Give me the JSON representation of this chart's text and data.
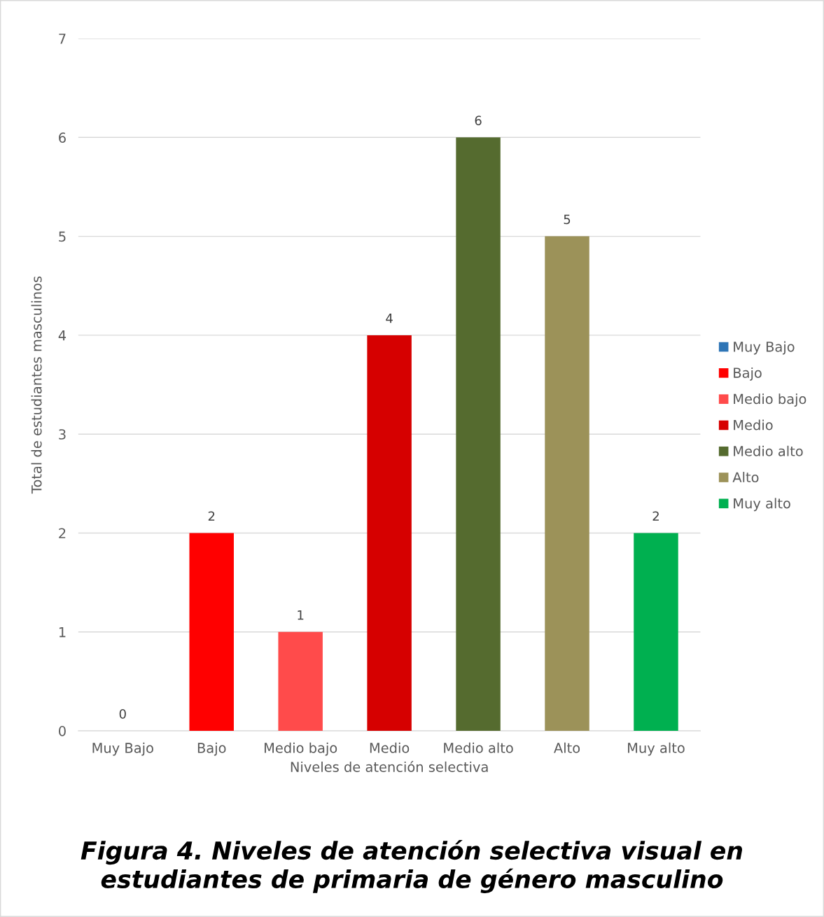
{
  "chart_data": {
    "type": "bar",
    "title": "Figura 4. Niveles de atención selectiva visual en estudiantes de primaria de género masculino",
    "xlabel": "Niveles de atención selectiva",
    "ylabel": "Total de estudiantes masculinos",
    "categories": [
      "Muy Bajo",
      "Bajo",
      "Medio bajo",
      "Medio",
      "Medio alto",
      "Alto",
      "Muy alto"
    ],
    "series": [
      {
        "name": "Muy Bajo",
        "color": "#2e75b6",
        "values": [
          0,
          null,
          null,
          null,
          null,
          null,
          null
        ]
      },
      {
        "name": "Bajo",
        "color": "#ff0000",
        "values": [
          null,
          2,
          null,
          null,
          null,
          null,
          null
        ]
      },
      {
        "name": "Medio bajo",
        "color": "#ff4b4b",
        "values": [
          null,
          null,
          1,
          null,
          null,
          null,
          null
        ]
      },
      {
        "name": "Medio",
        "color": "#d60000",
        "values": [
          null,
          null,
          null,
          4,
          null,
          null,
          null
        ]
      },
      {
        "name": "Medio alto",
        "color": "#556b2f",
        "values": [
          null,
          null,
          null,
          null,
          6,
          null,
          null
        ]
      },
      {
        "name": "Alto",
        "color": "#9c9259",
        "values": [
          null,
          null,
          null,
          null,
          null,
          5,
          null
        ]
      },
      {
        "name": "Muy alto",
        "color": "#00b050",
        "values": [
          null,
          null,
          null,
          null,
          null,
          null,
          2
        ]
      }
    ],
    "ylim": [
      0,
      7
    ],
    "yticks": [
      0,
      1,
      2,
      3,
      4,
      5,
      6,
      7
    ],
    "grid": "y",
    "legend": "right",
    "data_labels": true
  }
}
